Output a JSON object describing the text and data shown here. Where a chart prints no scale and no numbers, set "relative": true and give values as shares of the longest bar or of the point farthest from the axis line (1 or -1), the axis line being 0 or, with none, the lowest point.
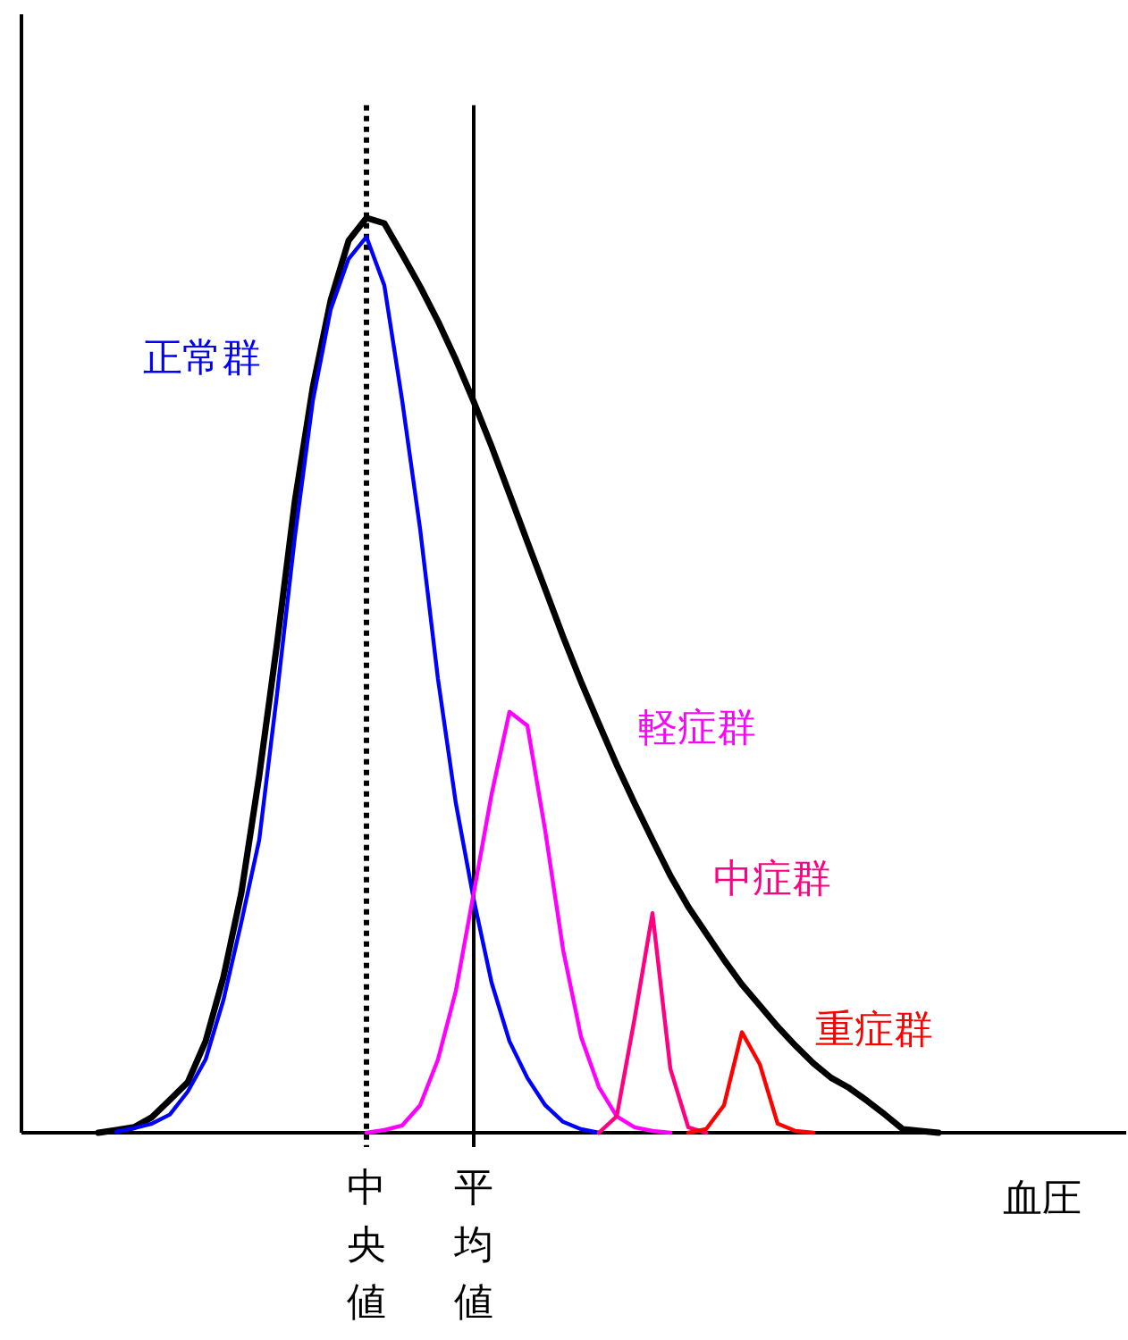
{
  "chart_data": {
    "type": "line",
    "relative": true,
    "xlabel": "血圧",
    "categories": [
      null,
      null,
      null,
      null,
      null,
      null,
      null,
      null,
      null,
      null,
      null,
      null,
      null,
      null,
      null,
      null,
      null,
      null,
      null,
      "中央値",
      null,
      null,
      null,
      null,
      null,
      "平均値",
      null,
      null,
      null,
      null,
      null,
      null,
      null,
      null,
      null,
      null,
      null,
      null,
      null,
      null,
      null,
      null,
      null,
      null,
      null,
      null,
      null,
      null,
      null,
      null,
      null,
      null,
      null
    ],
    "series": [
      {
        "color": "#000000",
        "values": [
          null,
          null,
          null,
          null,
          0,
          0.003,
          0.006,
          0.017,
          0.036,
          0.055,
          0.1,
          0.17,
          0.262,
          0.39,
          0.535,
          0.691,
          0.815,
          0.91,
          0.975,
          1.0,
          0.994,
          0.96,
          0.925,
          0.887,
          0.845,
          0.799,
          0.75,
          0.698,
          0.646,
          0.594,
          0.542,
          0.493,
          0.447,
          0.402,
          0.36,
          0.32,
          0.281,
          0.247,
          0.218,
          0.189,
          0.162,
          0.139,
          0.116,
          0.095,
          0.076,
          0.06,
          0.049,
          0.035,
          0.02,
          0.004,
          0.002,
          0,
          null
        ]
      },
      {
        "name": "正常群",
        "color": "#0000ff",
        "values": [
          null,
          null,
          null,
          null,
          null,
          0.001,
          0.005,
          0.01,
          0.02,
          0.045,
          0.08,
          0.145,
          0.23,
          0.32,
          0.48,
          0.652,
          0.8,
          0.9,
          0.955,
          0.979,
          0.926,
          0.8,
          0.66,
          0.496,
          0.36,
          0.255,
          0.164,
          0.1,
          0.06,
          0.03,
          0.012,
          0.004,
          0,
          null,
          null,
          null,
          null,
          null,
          null,
          null,
          null,
          null,
          null,
          null,
          null,
          null,
          null,
          null,
          null,
          null,
          null,
          null,
          null
        ]
      },
      {
        "name": "軽症群",
        "color": "#ff00ff",
        "values": [
          null,
          null,
          null,
          null,
          null,
          null,
          null,
          null,
          null,
          null,
          null,
          null,
          null,
          null,
          null,
          null,
          null,
          null,
          null,
          0,
          0.003,
          0.008,
          0.03,
          0.08,
          0.155,
          0.262,
          0.37,
          0.46,
          0.445,
          0.33,
          0.2,
          0.105,
          0.05,
          0.018,
          0.006,
          0.002,
          0,
          null,
          null,
          null,
          null,
          null,
          null,
          null,
          null,
          null,
          null,
          null,
          null,
          null,
          null,
          null,
          null
        ]
      },
      {
        "name": "中症群",
        "color": "#ff0080",
        "values": [
          null,
          null,
          null,
          null,
          null,
          null,
          null,
          null,
          null,
          null,
          null,
          null,
          null,
          null,
          null,
          null,
          null,
          null,
          null,
          null,
          null,
          null,
          null,
          null,
          null,
          null,
          null,
          null,
          null,
          null,
          null,
          null,
          0,
          0.018,
          0.125,
          0.24,
          0.07,
          0.006,
          0,
          null,
          null,
          null,
          null,
          null,
          null,
          null,
          null,
          null,
          null,
          null,
          null,
          null,
          null
        ]
      },
      {
        "name": "重症群",
        "color": "#ff0000",
        "values": [
          null,
          null,
          null,
          null,
          null,
          null,
          null,
          null,
          null,
          null,
          null,
          null,
          null,
          null,
          null,
          null,
          null,
          null,
          null,
          null,
          null,
          null,
          null,
          null,
          null,
          null,
          null,
          null,
          null,
          null,
          null,
          null,
          null,
          null,
          null,
          null,
          null,
          0,
          0.004,
          0.03,
          0.11,
          0.075,
          0.01,
          0.002,
          0,
          null,
          null,
          null,
          null,
          null,
          null,
          null,
          null
        ]
      }
    ],
    "ref_lines": [
      {
        "axis": "x",
        "value": "中央値",
        "line_style": "dotted",
        "color": "#000000"
      },
      {
        "axis": "x",
        "value": "平均値",
        "line_style": "solid",
        "color": "#000000"
      }
    ]
  }
}
